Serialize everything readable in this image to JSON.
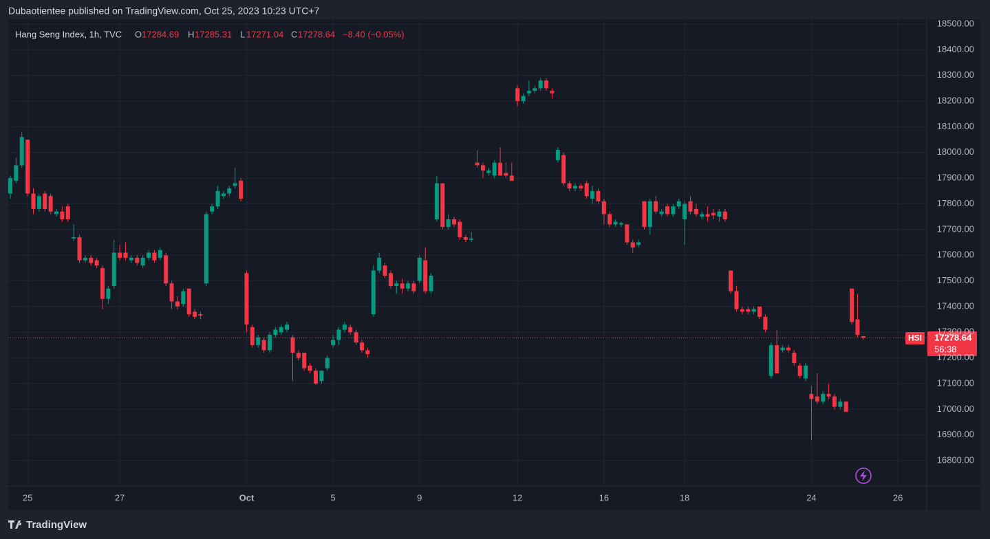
{
  "header": {
    "publisher": "Dubaotientee published on TradingView.com, Oct 25, 2023 10:23 UTC+7",
    "brand": "TradingView"
  },
  "legend": {
    "symbol": "Hang Seng Index, 1h, TVC",
    "open_key": "O",
    "high_key": "H",
    "low_key": "L",
    "close_key": "C",
    "change": "−8.40 (−0.05%)"
  },
  "price_tag": {
    "symbol": "HSI",
    "countdown": "56:38"
  },
  "chart_data": {
    "type": "candlestick",
    "up_color": "#089981",
    "down_color": "#f23645",
    "grid": true,
    "xlim": [
      0.5,
      160
    ],
    "ylim": [
      16700,
      18520
    ],
    "xticks": [
      {
        "value": 4,
        "label": "25"
      },
      {
        "value": 20,
        "label": "27"
      },
      {
        "value": 42,
        "label": "Oct"
      },
      {
        "value": 57,
        "label": "5"
      },
      {
        "value": 72,
        "label": "9"
      },
      {
        "value": 89,
        "label": "12"
      },
      {
        "value": 104,
        "label": "16"
      },
      {
        "value": 118,
        "label": "18"
      },
      {
        "value": 140,
        "label": "24"
      },
      {
        "value": 155,
        "label": "26"
      }
    ],
    "yticks": [
      {
        "value": 16800,
        "label": "16800.00"
      },
      {
        "value": 16900,
        "label": "16900.00"
      },
      {
        "value": 17000,
        "label": "17000.00"
      },
      {
        "value": 17100,
        "label": "17100.00"
      },
      {
        "value": 17200,
        "label": "17200.00"
      },
      {
        "value": 17300,
        "label": "17300.00"
      },
      {
        "value": 17400,
        "label": "17400.00"
      },
      {
        "value": 17500,
        "label": "17500.00"
      },
      {
        "value": 17600,
        "label": "17600.00"
      },
      {
        "value": 17700,
        "label": "17700.00"
      },
      {
        "value": 17800,
        "label": "17800.00"
      },
      {
        "value": 17900,
        "label": "17900.00"
      },
      {
        "value": 18000,
        "label": "18000.00"
      },
      {
        "value": 18100,
        "label": "18100.00"
      },
      {
        "value": 18200,
        "label": "18200.00"
      },
      {
        "value": 18300,
        "label": "18300.00"
      },
      {
        "value": 18400,
        "label": "18400.00"
      },
      {
        "value": 18500,
        "label": "18500.00"
      }
    ],
    "x": [
      1,
      2,
      3,
      4,
      5,
      6,
      7,
      8,
      9,
      10,
      11,
      12,
      13,
      14,
      15,
      16,
      17,
      18,
      19,
      20,
      21,
      22,
      23,
      24,
      25,
      26,
      27,
      28,
      29,
      30,
      31,
      32,
      33,
      34,
      35,
      36,
      37,
      38,
      39,
      40,
      41,
      42,
      43,
      44,
      45,
      46,
      47,
      48,
      49,
      50,
      51,
      52,
      53,
      54,
      55,
      56,
      57,
      58,
      59,
      60,
      61,
      62,
      63,
      64,
      65,
      66,
      67,
      68,
      69,
      70,
      71,
      72,
      73,
      74,
      75,
      76,
      77,
      78,
      79,
      80,
      81,
      82,
      83,
      84,
      85,
      86,
      87,
      88,
      89,
      90,
      91,
      92,
      93,
      94,
      95,
      96,
      97,
      98,
      99,
      100,
      101,
      102,
      103,
      104,
      105,
      106,
      107,
      108,
      109,
      110,
      111,
      112,
      113,
      114,
      115,
      116,
      117,
      118,
      119,
      120,
      121,
      122,
      123,
      124,
      125,
      126,
      127,
      128,
      129,
      130,
      131,
      132,
      133,
      134,
      135,
      136,
      137,
      138,
      139,
      140,
      141,
      142,
      143,
      144,
      145,
      146,
      147,
      148,
      149
    ],
    "open": [
      17840,
      17890,
      17950,
      18050,
      17840,
      17780,
      17840,
      17830,
      17760,
      17770,
      17790,
      17665,
      17670,
      17580,
      17590,
      17580,
      17550,
      17430,
      17480,
      17610,
      17610,
      17580,
      17590,
      17560,
      17590,
      17610,
      17590,
      17600,
      17490,
      17420,
      17410,
      17470,
      17380,
      17370,
      17490,
      17770,
      17790,
      17830,
      17840,
      17870,
      17890,
      17530,
      17320,
      17250,
      17270,
      17230,
      17290,
      17300,
      17310,
      17280,
      17220,
      17220,
      17170,
      17150,
      17110,
      17160,
      17250,
      17270,
      17310,
      17320,
      17300,
      17260,
      17230,
      17370,
      17540,
      17560,
      17530,
      17480,
      17490,
      17470,
      17490,
      17500,
      17580,
      17460,
      17740,
      17880,
      17710,
      17740,
      17730,
      17670,
      17660,
      17960,
      17950,
      17920,
      17910,
      17960,
      17920,
      17910,
      18250,
      18200,
      18230,
      18240,
      18250,
      18280,
      18240,
      17970,
      17990,
      17880,
      17860,
      17870,
      17880,
      17820,
      17850,
      17810,
      17760,
      17720,
      17720,
      17720,
      17650,
      17640,
      17810,
      17710,
      17810,
      17760,
      17790,
      17760,
      17790,
      17740,
      17810,
      17780,
      17750,
      17760,
      17765,
      17750,
      17770,
      17540,
      17460,
      17390,
      17390,
      17380,
      17400,
      17360,
      17130,
      17250,
      17230,
      17240,
      17220,
      17170,
      17120,
      17060,
      17050,
      17030,
      17060,
      17050,
      17010,
      17030,
      17470,
      17350,
      17284.69
    ],
    "high": [
      17910,
      17980,
      18080,
      18050,
      17860,
      17840,
      17850,
      17840,
      17780,
      17790,
      17800,
      17720,
      17680,
      17600,
      17600,
      17590,
      17560,
      17480,
      17660,
      17640,
      17650,
      17600,
      17600,
      17600,
      17620,
      17620,
      17630,
      17610,
      17500,
      17440,
      17470,
      17470,
      17390,
      17380,
      17770,
      17800,
      17870,
      17850,
      17870,
      17940,
      17900,
      17540,
      17330,
      17290,
      17280,
      17300,
      17320,
      17330,
      17340,
      17290,
      17230,
      17220,
      17180,
      17160,
      17150,
      17210,
      17290,
      17320,
      17340,
      17330,
      17310,
      17270,
      17240,
      17560,
      17610,
      17570,
      17540,
      17500,
      17510,
      17500,
      17500,
      17600,
      17630,
      17530,
      17910,
      17880,
      17760,
      17750,
      17740,
      17680,
      17690,
      18010,
      17960,
      17940,
      17970,
      18020,
      17960,
      17960,
      18260,
      18230,
      18280,
      18260,
      18290,
      18290,
      18250,
      18020,
      18000,
      17890,
      17880,
      17880,
      17890,
      17870,
      17860,
      17820,
      17770,
      17740,
      17730,
      17720,
      17660,
      17660,
      17810,
      17820,
      17830,
      17780,
      17800,
      17800,
      17820,
      17810,
      17830,
      17800,
      17770,
      17790,
      17780,
      17780,
      17780,
      17540,
      17480,
      17400,
      17400,
      17400,
      17400,
      17370,
      17260,
      17310,
      17250,
      17250,
      17230,
      17180,
      17180,
      17090,
      17140,
      17070,
      17100,
      17060,
      17040,
      17030,
      17470,
      17450,
      17285.31
    ],
    "low": [
      17820,
      17880,
      17940,
      17830,
      17760,
      17770,
      17770,
      17760,
      17750,
      17730,
      17730,
      17655,
      17570,
      17570,
      17560,
      17550,
      17390,
      17410,
      17470,
      17580,
      17580,
      17570,
      17560,
      17550,
      17580,
      17570,
      17580,
      17480,
      17390,
      17390,
      17400,
      17360,
      17350,
      17350,
      17480,
      17760,
      17780,
      17820,
      17830,
      17860,
      17810,
      17300,
      17240,
      17240,
      17220,
      17220,
      17280,
      17290,
      17300,
      17110,
      17190,
      17150,
      17140,
      17095,
      17100,
      17150,
      17240,
      17250,
      17300,
      17290,
      17250,
      17220,
      17200,
      17360,
      17530,
      17510,
      17470,
      17450,
      17450,
      17460,
      17450,
      17490,
      17450,
      17450,
      17730,
      17700,
      17700,
      17710,
      17660,
      17650,
      17650,
      17940,
      17900,
      17910,
      17900,
      17910,
      17900,
      17890,
      18180,
      18190,
      18220,
      18230,
      18240,
      18240,
      18210,
      17960,
      17870,
      17850,
      17850,
      17850,
      17820,
      17800,
      17800,
      17720,
      17710,
      17710,
      17710,
      17640,
      17610,
      17630,
      17700,
      17680,
      17760,
      17750,
      17750,
      17750,
      17780,
      17640,
      17760,
      17750,
      17740,
      17730,
      17740,
      17730,
      17730,
      17450,
      17380,
      17370,
      17370,
      17370,
      17350,
      17300,
      17120,
      17140,
      17220,
      17220,
      17170,
      17120,
      17110,
      16880,
      17020,
      17020,
      17040,
      17000,
      17000,
      16990,
      17330,
      17280,
      17271.04
    ],
    "close": [
      17900,
      17950,
      18060,
      17840,
      17780,
      17830,
      17780,
      17770,
      17770,
      17740,
      17740,
      17670,
      17580,
      17590,
      17570,
      17560,
      17430,
      17470,
      17610,
      17590,
      17590,
      17590,
      17570,
      17590,
      17610,
      17580,
      17620,
      17490,
      17420,
      17400,
      17460,
      17370,
      17360,
      17365,
      17760,
      17790,
      17850,
      17840,
      17860,
      17880,
      17820,
      17330,
      17250,
      17280,
      17230,
      17290,
      17310,
      17320,
      17330,
      17220,
      17200,
      17160,
      17150,
      17100,
      17150,
      17200,
      17270,
      17310,
      17330,
      17300,
      17260,
      17230,
      17215,
      17540,
      17590,
      17520,
      17480,
      17490,
      17470,
      17490,
      17460,
      17590,
      17460,
      17520,
      17880,
      17710,
      17740,
      17720,
      17670,
      17660,
      17665,
      17950,
      17930,
      17930,
      17960,
      17910,
      17910,
      17890,
      18200,
      18220,
      18240,
      18250,
      18280,
      18250,
      18230,
      18010,
      17880,
      17860,
      17870,
      17860,
      17830,
      17850,
      17810,
      17760,
      17720,
      17730,
      17725,
      17650,
      17630,
      17650,
      17710,
      17810,
      17770,
      17770,
      17760,
      17790,
      17810,
      17800,
      17770,
      17760,
      17760,
      17750,
      17755,
      17770,
      17740,
      17460,
      17390,
      17380,
      17380,
      17390,
      17360,
      17310,
      17250,
      17140,
      17240,
      17230,
      17180,
      17130,
      17170,
      17040,
      17030,
      17060,
      17050,
      17010,
      17030,
      16990,
      17340,
      17290,
      17278.64
    ]
  }
}
